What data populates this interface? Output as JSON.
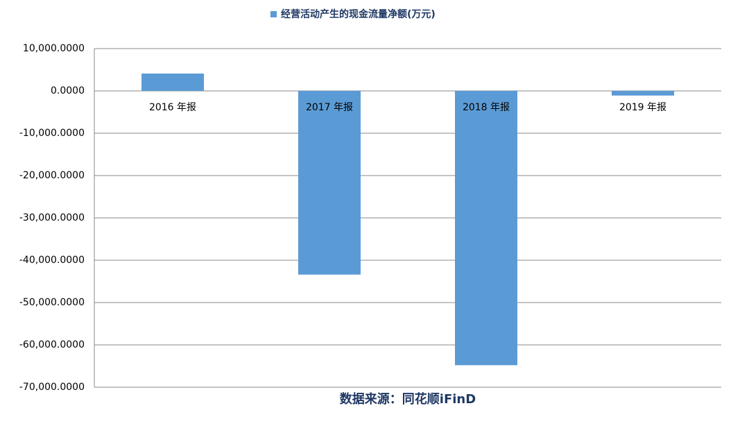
{
  "chart_data": {
    "type": "bar",
    "categories": [
      "2016 年报",
      "2017 年报",
      "2018 年报",
      "2019 年报"
    ],
    "series": [
      {
        "name": "经营活动产生的现金流量净额(万元)",
        "color": "#5b9bd5",
        "values": [
          4100,
          -43400,
          -64800,
          -1100
        ]
      }
    ],
    "ylim": [
      -70000,
      10000
    ],
    "yticks": [
      {
        "value": 10000,
        "label": "10,000.0000"
      },
      {
        "value": 0,
        "label": "0.0000"
      },
      {
        "value": -10000,
        "label": "-10,000.0000"
      },
      {
        "value": -20000,
        "label": "-20,000.0000"
      },
      {
        "value": -30000,
        "label": "-30,000.0000"
      },
      {
        "value": -40000,
        "label": "-40,000.0000"
      },
      {
        "value": -50000,
        "label": "-50,000.0000"
      },
      {
        "value": -60000,
        "label": "-60,000.0000"
      },
      {
        "value": -70000,
        "label": "-70,000.0000"
      }
    ],
    "grid": true,
    "legend": "top",
    "source": "数据来源：同花顺iFinD"
  }
}
